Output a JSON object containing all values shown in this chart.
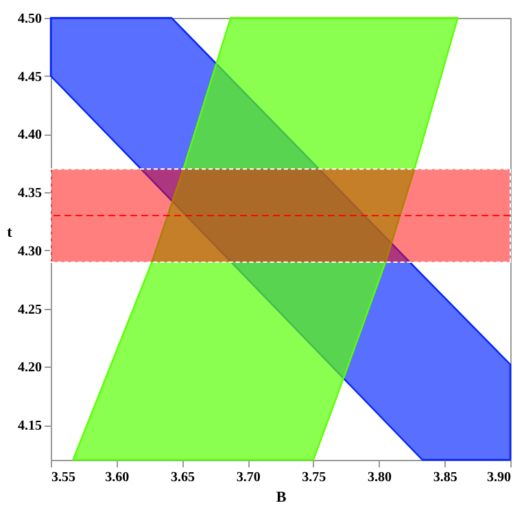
{
  "chart_data": {
    "type": "area",
    "xlabel": "B",
    "ylabel": "t",
    "xlim": [
      3.55,
      3.9
    ],
    "ylim": [
      4.12,
      4.5
    ],
    "xticks": [
      3.55,
      {
        "value": 3.6,
        "label": "3.60"
      },
      3.65,
      {
        "value": 3.7,
        "label": "3.70"
      },
      3.75,
      {
        "value": 3.8,
        "label": "3.80"
      },
      3.85,
      {
        "value": 3.9,
        "label": "3.90"
      }
    ],
    "yticks": [
      4.15,
      {
        "value": 4.2,
        "label": "4.20"
      },
      4.25,
      {
        "value": 4.3,
        "label": "4.30"
      },
      4.35,
      {
        "value": 4.4,
        "label": "4.40"
      },
      4.45,
      {
        "value": 4.5,
        "label": "4.50"
      }
    ],
    "grid": false,
    "series": [
      {
        "color": "#0022ff",
        "x": [
          3.55,
          3.642,
          3.833,
          3.9
        ],
        "values": [
          null,
          null,
          null,
          null
        ],
        "upper": [
          4.5,
          4.5,
          4.279,
          4.202
        ],
        "lower": [
          4.45,
          4.343,
          4.12,
          4.12
        ]
      },
      {
        "color": "#5aff05",
        "x": [
          3.567,
          3.627,
          3.651,
          3.687,
          3.75,
          3.772,
          3.805,
          3.827,
          3.86
        ],
        "values": [
          null,
          null,
          null,
          null,
          null,
          null,
          null,
          null,
          null
        ],
        "upper": [
          4.12,
          4.29,
          4.37,
          4.5,
          4.5,
          4.5,
          4.5,
          4.5,
          4.5
        ],
        "lower": [
          4.12,
          4.12,
          4.12,
          4.12,
          4.12,
          4.187,
          4.29,
          4.37,
          4.5
        ]
      }
    ],
    "bands": [
      {
        "axis": "y",
        "from": 4.29,
        "to": 4.37,
        "color": "#ff0000"
      }
    ],
    "ref_lines": [
      {
        "axis": "y",
        "value": 4.33,
        "color": "#ff0000",
        "line_style": "dashed"
      }
    ]
  }
}
